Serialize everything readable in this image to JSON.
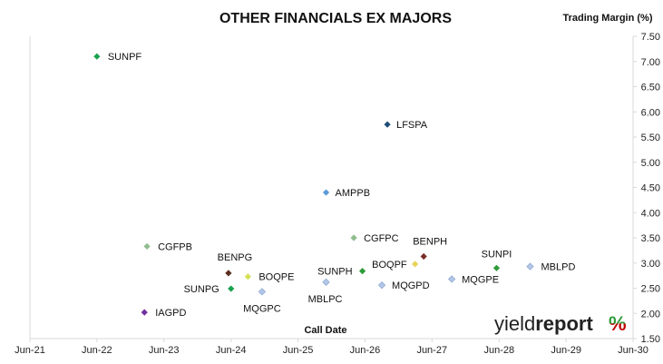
{
  "chart_data": {
    "type": "scatter",
    "title": "OTHER FINANCIALS EX MAJORS",
    "ylabel": "Trading Margin (%)",
    "xlabel": "Call Date",
    "ylim": [
      1.5,
      7.5
    ],
    "y_ticks": [
      "1.50",
      "2.00",
      "2.50",
      "3.00",
      "3.50",
      "4.00",
      "4.50",
      "5.00",
      "5.50",
      "6.00",
      "6.50",
      "7.00",
      "7.50"
    ],
    "x_ticks": [
      "Jun-21",
      "Jun-22",
      "Jun-23",
      "Jun-24",
      "Jun-25",
      "Jun-26",
      "Jun-27",
      "Jun-28",
      "Jun-29",
      "Jun-30"
    ],
    "xlim": [
      "Jun-21",
      "Jun-30"
    ],
    "grid": false,
    "points": [
      {
        "label": "SUNPF",
        "x": "2022-06-15",
        "y": 7.1,
        "color": "#1aa150"
      },
      {
        "label": "LFSPA",
        "x": "2026-10-15",
        "y": 5.75,
        "color": "#1f4e79"
      },
      {
        "label": "AMPPB",
        "x": "2025-11-15",
        "y": 4.4,
        "color": "#5b9bd5"
      },
      {
        "label": "CGFPB",
        "x": "2023-03-15",
        "y": 3.33,
        "color": "#8fbc8f"
      },
      {
        "label": "CGFPC",
        "x": "2026-04-15",
        "y": 3.5,
        "color": "#8fbc8f"
      },
      {
        "label": "BENPH",
        "x": "2027-05-01",
        "y": 3.13,
        "color": "#7b2c2c"
      },
      {
        "label": "BENPG",
        "x": "2024-06-01",
        "y": 2.8,
        "color": "#5a2e1f"
      },
      {
        "label": "BOQPE",
        "x": "2024-09-15",
        "y": 2.73,
        "color": "#d4e157"
      },
      {
        "label": "BOQPF",
        "x": "2027-03-15",
        "y": 2.98,
        "color": "#e8d25a"
      },
      {
        "label": "SUNPH",
        "x": "2026-06-01",
        "y": 2.84,
        "color": "#2e9b3a"
      },
      {
        "label": "SUNPI",
        "x": "2028-06-01",
        "y": 2.9,
        "color": "#2e9b3a"
      },
      {
        "label": "MBLPD",
        "x": "2028-12-01",
        "y": 2.93,
        "color": "#b4c7e7"
      },
      {
        "label": "MQGPE",
        "x": "2027-10-01",
        "y": 2.68,
        "color": "#b4c7e7"
      },
      {
        "label": "MBLPC",
        "x": "2025-11-15",
        "y": 2.62,
        "color": "#b4c7e7"
      },
      {
        "label": "MQGPD",
        "x": "2026-09-15",
        "y": 2.56,
        "color": "#b4c7e7"
      },
      {
        "label": "SUNPG",
        "x": "2024-06-15",
        "y": 2.49,
        "color": "#1aa150"
      },
      {
        "label": "MQGPC",
        "x": "2024-12-01",
        "y": 2.43,
        "color": "#b4c7e7"
      },
      {
        "label": "IAGPD",
        "x": "2023-03-01",
        "y": 2.02,
        "color": "#7030a0"
      }
    ]
  },
  "logo": {
    "text_light": "yield",
    "text_bold": "report",
    "symbol": "%",
    "symbol_color_top": "#2e9b3a",
    "symbol_color_bottom": "#c00000"
  }
}
